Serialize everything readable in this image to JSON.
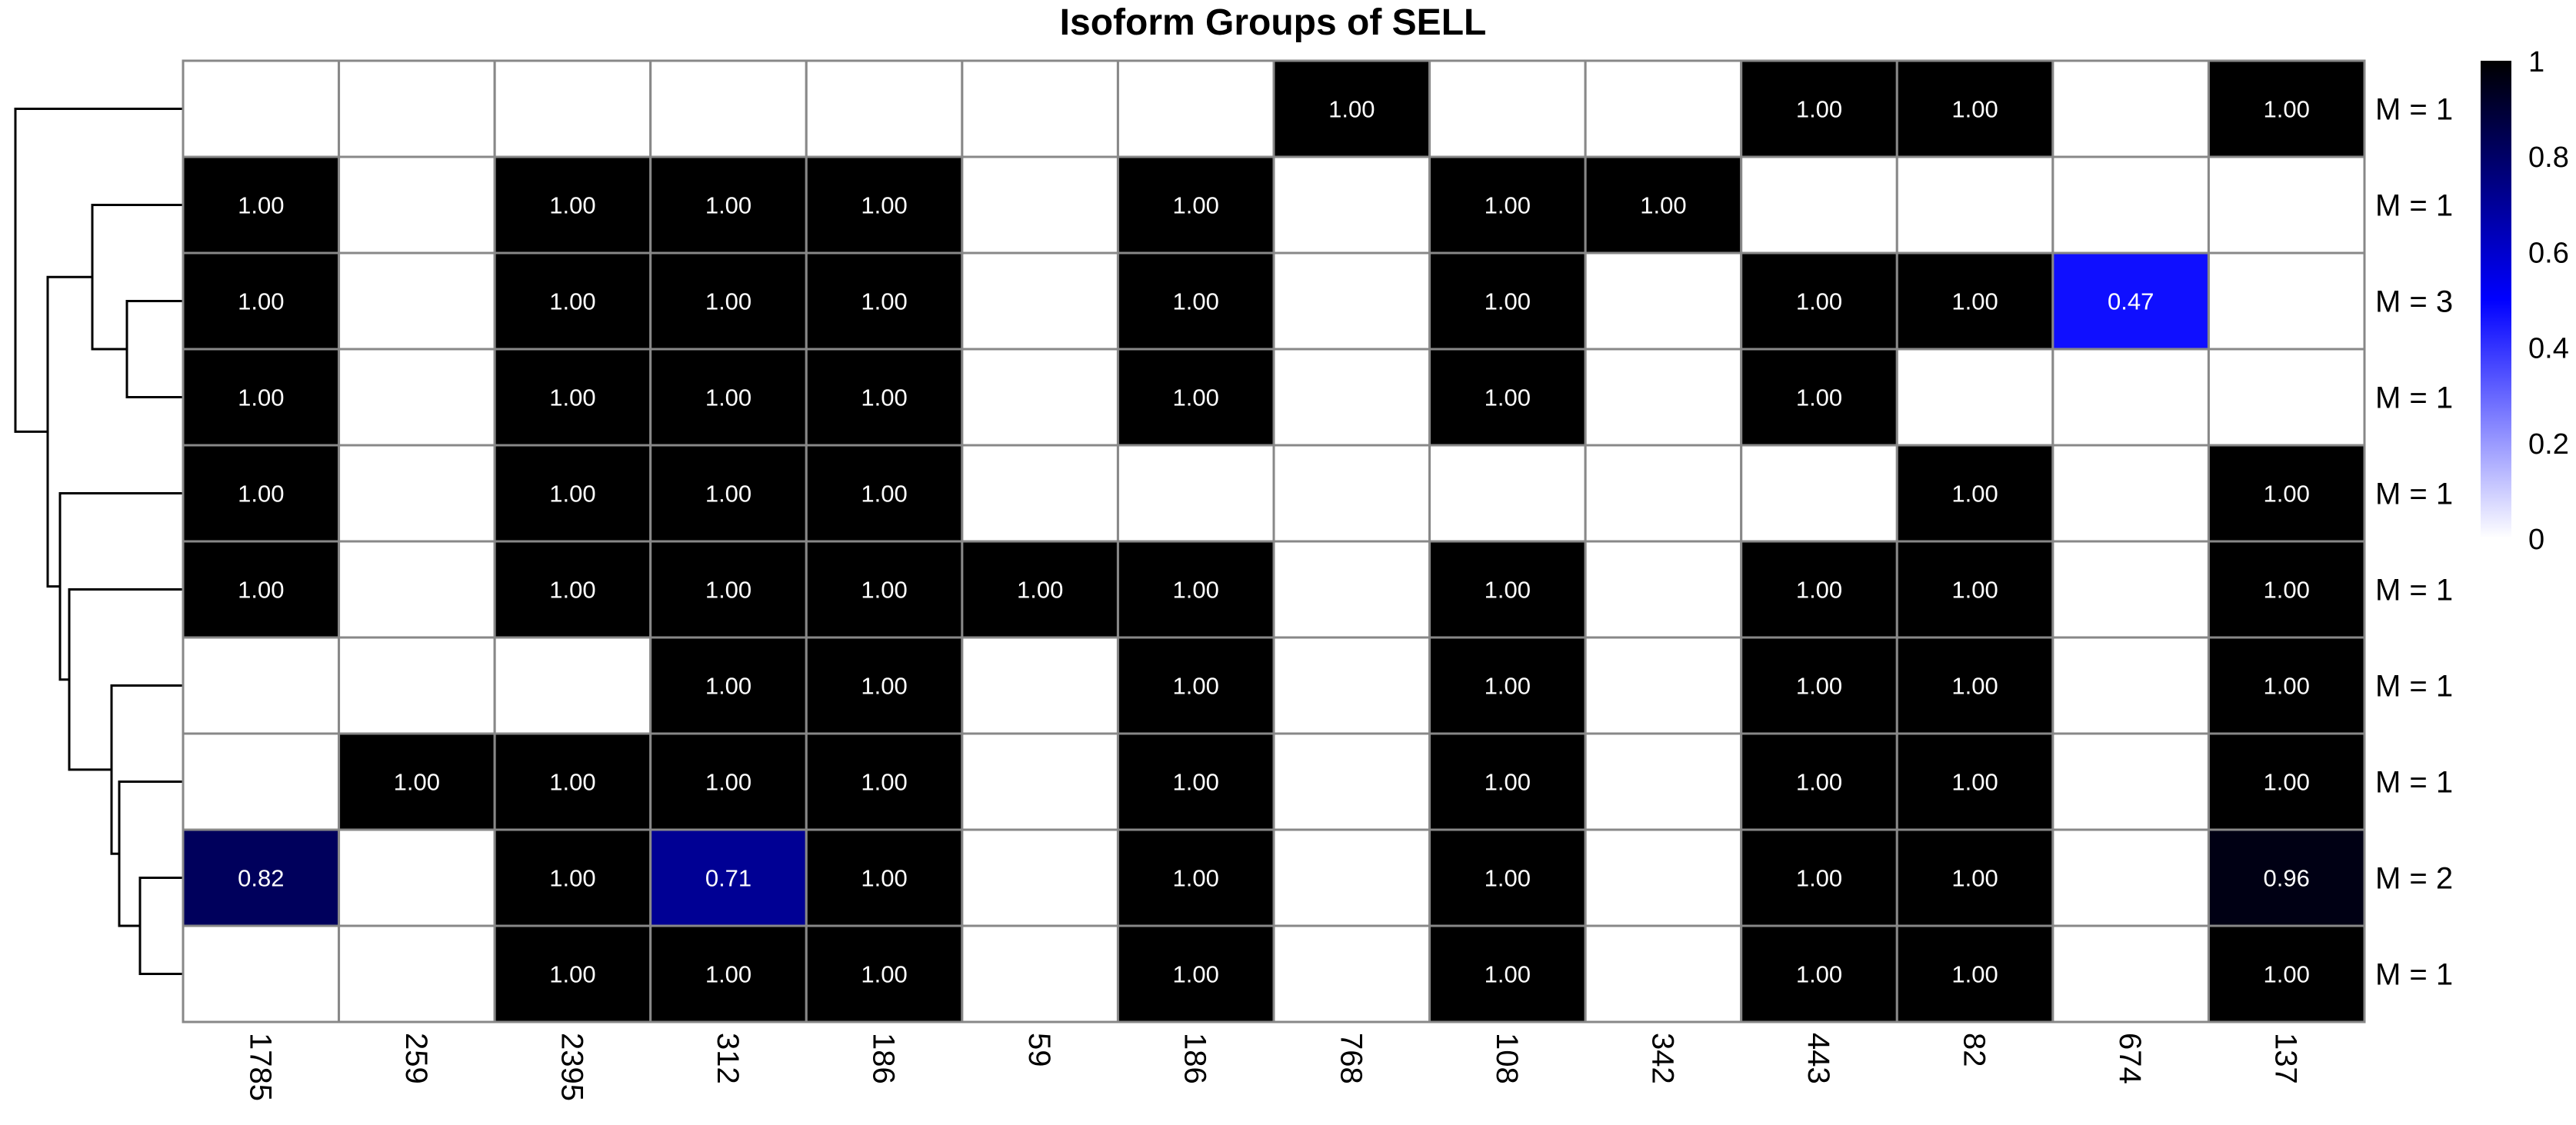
{
  "chart_data": {
    "type": "heatmap",
    "title": "Isoform Groups of SELL",
    "columns": [
      "1785",
      "259",
      "2395",
      "312",
      "186",
      "59",
      "186",
      "768",
      "108",
      "342",
      "443",
      "82",
      "674",
      "137"
    ],
    "row_labels": [
      "M = 1",
      "M = 1",
      "M = 3",
      "M = 1",
      "M = 1",
      "M = 1",
      "M = 1",
      "M = 1",
      "M = 2",
      "M = 1"
    ],
    "values": [
      [
        0,
        0,
        0,
        0,
        0,
        0,
        0,
        1.0,
        0,
        0,
        1.0,
        1.0,
        0,
        1.0
      ],
      [
        1.0,
        0,
        1.0,
        1.0,
        1.0,
        0,
        1.0,
        0,
        1.0,
        1.0,
        0,
        0,
        0,
        0
      ],
      [
        1.0,
        0,
        1.0,
        1.0,
        1.0,
        0,
        1.0,
        0,
        1.0,
        0,
        1.0,
        1.0,
        0.47,
        0
      ],
      [
        1.0,
        0,
        1.0,
        1.0,
        1.0,
        0,
        1.0,
        0,
        1.0,
        0,
        1.0,
        0,
        0,
        0
      ],
      [
        1.0,
        0,
        1.0,
        1.0,
        1.0,
        0,
        0,
        0,
        0,
        0,
        0,
        1.0,
        0,
        1.0
      ],
      [
        1.0,
        0,
        1.0,
        1.0,
        1.0,
        1.0,
        1.0,
        0,
        1.0,
        0,
        1.0,
        1.0,
        0,
        1.0
      ],
      [
        0,
        0,
        0,
        1.0,
        1.0,
        0,
        1.0,
        0,
        1.0,
        0,
        1.0,
        1.0,
        0,
        1.0
      ],
      [
        0,
        1.0,
        1.0,
        1.0,
        1.0,
        0,
        1.0,
        0,
        1.0,
        0,
        1.0,
        1.0,
        0,
        1.0
      ],
      [
        0.82,
        0,
        1.0,
        0.71,
        1.0,
        0,
        1.0,
        0,
        1.0,
        0,
        1.0,
        1.0,
        0,
        0.96
      ],
      [
        0,
        0,
        1.0,
        1.0,
        1.0,
        0,
        1.0,
        0,
        1.0,
        0,
        1.0,
        1.0,
        0,
        1.0
      ]
    ],
    "value_range": [
      0,
      1
    ],
    "legend_ticks": [
      "0",
      "0.2",
      "0.4",
      "0.6",
      "0.8",
      "1"
    ],
    "color_scale": [
      "#ffffff",
      "#0000ff",
      "#000000"
    ],
    "grid_color": "#888888",
    "dendrogram": "left",
    "legend_position": "right"
  }
}
